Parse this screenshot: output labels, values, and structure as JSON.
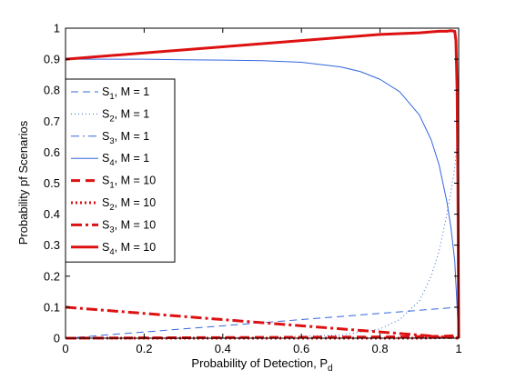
{
  "chart_data": {
    "type": "line",
    "xlabel": "Probability of Detection, P",
    "xlabel_sub": "d",
    "ylabel": "Probability pf Scenarios",
    "xlim": [
      0,
      1
    ],
    "ylim": [
      0,
      1
    ],
    "xticks": [
      0,
      0.2,
      0.4,
      0.6,
      0.8,
      1
    ],
    "xtick_labels": [
      "0",
      "0.2",
      "0.4",
      "0.6",
      "0.8",
      "1"
    ],
    "yticks": [
      0,
      0.1,
      0.2,
      0.3,
      0.4,
      0.5,
      0.6,
      0.7,
      0.8,
      0.9,
      1
    ],
    "ytick_labels": [
      "0",
      "0.1",
      "0.2",
      "0.3",
      "0.4",
      "0.5",
      "0.6",
      "0.7",
      "0.8",
      "0.9",
      "1"
    ],
    "grid": false,
    "legend_position": "left",
    "series": [
      {
        "name_main": "S",
        "name_sub": "1",
        "name_rest": ", M = 1",
        "color": "#3366dd",
        "style": "dashed",
        "weight": "thin",
        "x": [
          0,
          0.2,
          0.4,
          0.6,
          0.8,
          0.9,
          0.95,
          0.98,
          1.0
        ],
        "y": [
          0,
          0.02,
          0.04,
          0.06,
          0.08,
          0.09,
          0.095,
          0.098,
          0.1
        ]
      },
      {
        "name_main": "S",
        "name_sub": "2",
        "name_rest": ", M = 1",
        "color": "#3366dd",
        "style": "dotted",
        "weight": "thin",
        "x": [
          0,
          0.5,
          0.7,
          0.8,
          0.85,
          0.9,
          0.93,
          0.95,
          0.97,
          0.98,
          0.99,
          0.995,
          1.0
        ],
        "y": [
          0,
          0.002,
          0.01,
          0.03,
          0.06,
          0.12,
          0.2,
          0.28,
          0.4,
          0.47,
          0.55,
          0.62,
          0.7
        ]
      },
      {
        "name_main": "S",
        "name_sub": "3",
        "name_rest": ", M = 1",
        "color": "#3366dd",
        "style": "dashdot",
        "weight": "thin",
        "x": [
          0,
          0.5,
          0.8,
          0.9,
          0.95,
          0.98,
          1.0
        ],
        "y": [
          0,
          0,
          0,
          0.001,
          0.002,
          0.003,
          0.004
        ]
      },
      {
        "name_main": "S",
        "name_sub": "4",
        "name_rest": ", M = 1",
        "color": "#3366dd",
        "style": "solid",
        "weight": "thin",
        "x": [
          0,
          0.1,
          0.2,
          0.3,
          0.4,
          0.5,
          0.6,
          0.7,
          0.75,
          0.8,
          0.85,
          0.9,
          0.93,
          0.95,
          0.97,
          0.98,
          0.99,
          1.0
        ],
        "y": [
          0.9,
          0.9,
          0.9,
          0.898,
          0.897,
          0.895,
          0.89,
          0.875,
          0.86,
          0.835,
          0.795,
          0.72,
          0.64,
          0.56,
          0.44,
          0.36,
          0.25,
          0.0
        ]
      },
      {
        "name_main": "S",
        "name_sub": "1",
        "name_rest": ", M = 10",
        "color": "#dd1111",
        "style": "dashed",
        "weight": "thick",
        "x": [
          0,
          0.2,
          0.4,
          0.6,
          0.8,
          0.9,
          0.95,
          0.99,
          1.0
        ],
        "y": [
          0,
          0.001,
          0.002,
          0.003,
          0.004,
          0.005,
          0.006,
          0.008,
          0.0
        ]
      },
      {
        "name_main": "S",
        "name_sub": "2",
        "name_rest": ", M = 10",
        "color": "#dd1111",
        "style": "dotted",
        "weight": "thick",
        "x": [
          0,
          0.5,
          0.9,
          0.97,
          0.99,
          0.995,
          1.0
        ],
        "y": [
          0,
          0,
          0,
          0.002,
          0.004,
          0.006,
          0.0
        ]
      },
      {
        "name_main": "S",
        "name_sub": "3",
        "name_rest": ", M = 10",
        "color": "#dd1111",
        "style": "dashdot",
        "weight": "thick",
        "x": [
          0,
          0.2,
          0.4,
          0.6,
          0.8,
          0.9,
          0.95,
          0.98,
          1.0
        ],
        "y": [
          0.1,
          0.08,
          0.06,
          0.04,
          0.02,
          0.01,
          0.005,
          0.002,
          0.0
        ]
      },
      {
        "name_main": "S",
        "name_sub": "4",
        "name_rest": ", M = 10",
        "color": "#dd1111",
        "style": "solid",
        "weight": "thick",
        "x": [
          0,
          0.2,
          0.4,
          0.6,
          0.8,
          0.9,
          0.95,
          0.97,
          0.98,
          0.99,
          0.993,
          0.996,
          0.998,
          1.0
        ],
        "y": [
          0.9,
          0.92,
          0.94,
          0.96,
          0.98,
          0.985,
          0.99,
          0.99,
          0.992,
          0.99,
          0.96,
          0.8,
          0.5,
          0.0
        ]
      }
    ]
  }
}
